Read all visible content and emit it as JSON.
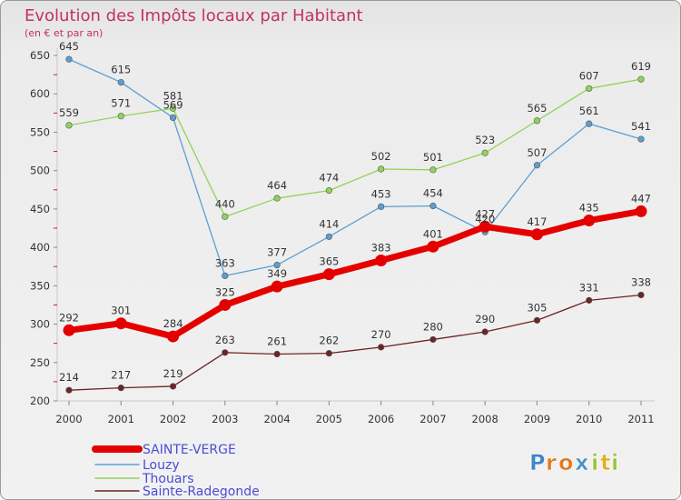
{
  "chart_data": {
    "type": "line",
    "title": "Evolution des Impôts locaux par Habitant",
    "subtitle": "(en € et par an)",
    "xlabel": "",
    "ylabel": "",
    "ylim": [
      200,
      650
    ],
    "y_ticks": [
      200,
      250,
      300,
      350,
      400,
      450,
      500,
      550,
      600,
      650
    ],
    "categories": [
      "2000",
      "2001",
      "2002",
      "2003",
      "2004",
      "2005",
      "2006",
      "2007",
      "2008",
      "2009",
      "2010",
      "2011"
    ],
    "grid": false,
    "legend_position": "bottom-left",
    "series": [
      {
        "name": "SAINTE-VERGE",
        "color": "#e50000",
        "values": [
          292,
          301,
          284,
          325,
          349,
          365,
          383,
          401,
          427,
          417,
          435,
          447
        ]
      },
      {
        "name": "Louzy",
        "color": "#5b9fd1",
        "values": [
          645,
          615,
          569,
          363,
          377,
          414,
          453,
          454,
          420,
          507,
          561,
          541
        ]
      },
      {
        "name": "Thouars",
        "color": "#8fd45a",
        "values": [
          559,
          571,
          581,
          440,
          464,
          474,
          502,
          501,
          523,
          565,
          607,
          619
        ]
      },
      {
        "name": "Sainte-Radegonde",
        "color": "#6e2424",
        "values": [
          214,
          217,
          219,
          263,
          261,
          262,
          270,
          280,
          290,
          305,
          331,
          338
        ]
      }
    ]
  },
  "logo": {
    "text": "Proxiti",
    "letters": [
      "P",
      "r",
      "o",
      "x",
      "i",
      "t",
      "i"
    ],
    "colors": [
      "#3d85c6",
      "#e07b22",
      "#e07b22",
      "#4a90c6",
      "#9bc23c",
      "#e0b020",
      "#9bc23c"
    ]
  }
}
